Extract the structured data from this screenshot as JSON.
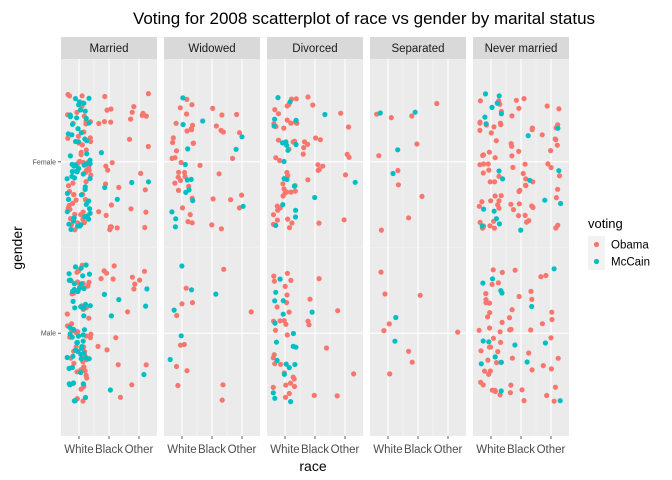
{
  "chart_data": {
    "type": "scatter",
    "title": "Voting for 2008 scatterplot of race vs gender by marital status",
    "xlabel": "race",
    "ylabel": "gender",
    "x_categories": [
      "White",
      "Black",
      "Other"
    ],
    "y_categories": [
      "Male",
      "Female"
    ],
    "facet_variable": "marital status",
    "facets": [
      "Married",
      "Widowed",
      "Divorced",
      "Separated",
      "Never married"
    ],
    "jitter": true,
    "grid": true,
    "legend": {
      "title": "voting",
      "position": "right",
      "entries": [
        {
          "name": "Obama",
          "color": "#F8766D"
        },
        {
          "name": "McCain",
          "color": "#00BFC4"
        }
      ]
    },
    "approx_counts": {
      "Married": {
        "Female": {
          "White": [
            55,
            60
          ],
          "Black": [
            18,
            3
          ],
          "Other": [
            14,
            2
          ]
        },
        "Male": {
          "White": [
            50,
            55
          ],
          "Black": [
            10,
            4
          ],
          "Other": [
            8,
            3
          ]
        }
      },
      "Widowed": {
        "Female": {
          "White": [
            30,
            12
          ],
          "Black": [
            10,
            1
          ],
          "Other": [
            6,
            3
          ]
        },
        "Male": {
          "White": [
            9,
            5
          ],
          "Black": [
            3,
            1
          ],
          "Other": [
            1,
            0
          ]
        }
      },
      "Divorced": {
        "Female": {
          "White": [
            38,
            18
          ],
          "Black": [
            14,
            2
          ],
          "Other": [
            6,
            1
          ]
        },
        "Male": {
          "White": [
            28,
            18
          ],
          "Black": [
            6,
            1
          ],
          "Other": [
            3,
            0
          ]
        }
      },
      "Separated": {
        "Female": {
          "White": [
            6,
            3
          ],
          "Black": [
            4,
            1
          ],
          "Other": [
            1,
            0
          ]
        },
        "Male": {
          "White": [
            5,
            2
          ],
          "Black": [
            3,
            0
          ],
          "Other": [
            1,
            0
          ]
        }
      },
      "Never married": {
        "Female": {
          "White": [
            40,
            14
          ],
          "Black": [
            28,
            3
          ],
          "Other": [
            16,
            4
          ]
        },
        "Male": {
          "White": [
            32,
            10
          ],
          "Black": [
            16,
            3
          ],
          "Other": [
            12,
            3
          ]
        }
      }
    }
  }
}
